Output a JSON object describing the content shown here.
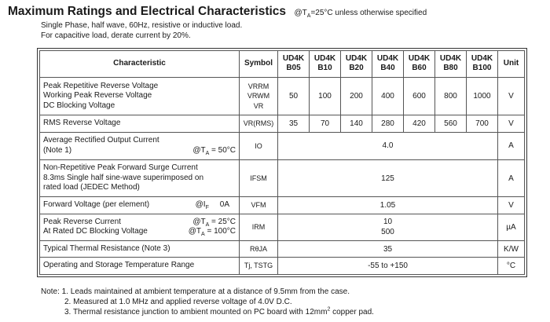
{
  "header": {
    "title": "Maximum Ratings and Electrical Characteristics",
    "condition_prefix": "@T",
    "condition_sub": "A",
    "condition_suffix": "=25°C unless otherwise specified",
    "line1": "Single Phase, half wave, 60Hz, resistive or inductive load.",
    "line2": "For capacitive load, derate current by 20%."
  },
  "table": {
    "head": {
      "characteristic": "Characteristic",
      "symbol": "Symbol",
      "unit": "Unit",
      "parts": [
        [
          "UD4K",
          "B05"
        ],
        [
          "UD4K",
          "B10"
        ],
        [
          "UD4K",
          "B20"
        ],
        [
          "UD4K",
          "B40"
        ],
        [
          "UD4K",
          "B60"
        ],
        [
          "UD4K",
          "B80"
        ],
        [
          "UD4K",
          "B100"
        ]
      ]
    },
    "r1": {
      "c1": "Peak Repetitive Reverse Voltage",
      "c2": "Working Peak Reverse Voltage",
      "c3": "DC Blocking Voltage",
      "s1": "VRRM",
      "s2": "VRWM",
      "s3": "VR",
      "values": [
        "50",
        "100",
        "200",
        "400",
        "600",
        "800",
        "1000"
      ],
      "unit": "V"
    },
    "r2": {
      "char": "RMS Reverse Voltage",
      "sym": "VR(RMS)",
      "values": [
        "35",
        "70",
        "140",
        "280",
        "420",
        "560",
        "700"
      ],
      "unit": "V"
    },
    "r3": {
      "c1": "Average Rectified Output Current",
      "c2": "(Note 1)",
      "cond_prefix": "@T",
      "cond_sub": "A",
      "cond_suffix": " = 50°C",
      "sym": "IO",
      "value": "4.0",
      "unit": "A"
    },
    "r4": {
      "c1": "Non-Repetitive Peak Forward Surge Current",
      "c2": "8.3ms Single half sine-wave superimposed on",
      "c3": "rated load (JEDEC Method)",
      "sym": "IFSM",
      "value": "125",
      "unit": "A"
    },
    "r5": {
      "char": "Forward Voltage (per element)",
      "cond_prefix": "@I",
      "cond_sub": "F",
      "cond_suffix": "0A",
      "sym": "VFM",
      "value": "1.05",
      "unit": "V"
    },
    "r6": {
      "c1": "Peak Reverse Current",
      "c2": "At Rated DC Blocking Voltage",
      "cond1_prefix": "@T",
      "cond1_sub": "A",
      "cond1_suffix": " = 25°C",
      "cond2_prefix": "@T",
      "cond2_sub": "A",
      "cond2_suffix": " = 100°C",
      "sym": "IRM",
      "v1": "10",
      "v2": "500",
      "unit": "µA"
    },
    "r7": {
      "char": "Typical Thermal Resistance (Note 3)",
      "sym": "RθJA",
      "value": "35",
      "unit": "K/W"
    },
    "r8": {
      "char": "Operating and Storage Temperature Range",
      "sym": "Tj, TSTG",
      "value": "-55 to +150",
      "unit": "°C"
    }
  },
  "notes": {
    "n1": "Note:  1. Leads maintained at ambient temperature at a distance of 9.5mm from the case.",
    "n2": "2. Measured at 1.0 MHz and applied reverse voltage of 4.0V D.C.",
    "n3_pre": "3. Thermal resistance junction to ambient mounted on PC board with 12mm",
    "n3_sup": "2",
    "n3_post": " copper pad."
  }
}
